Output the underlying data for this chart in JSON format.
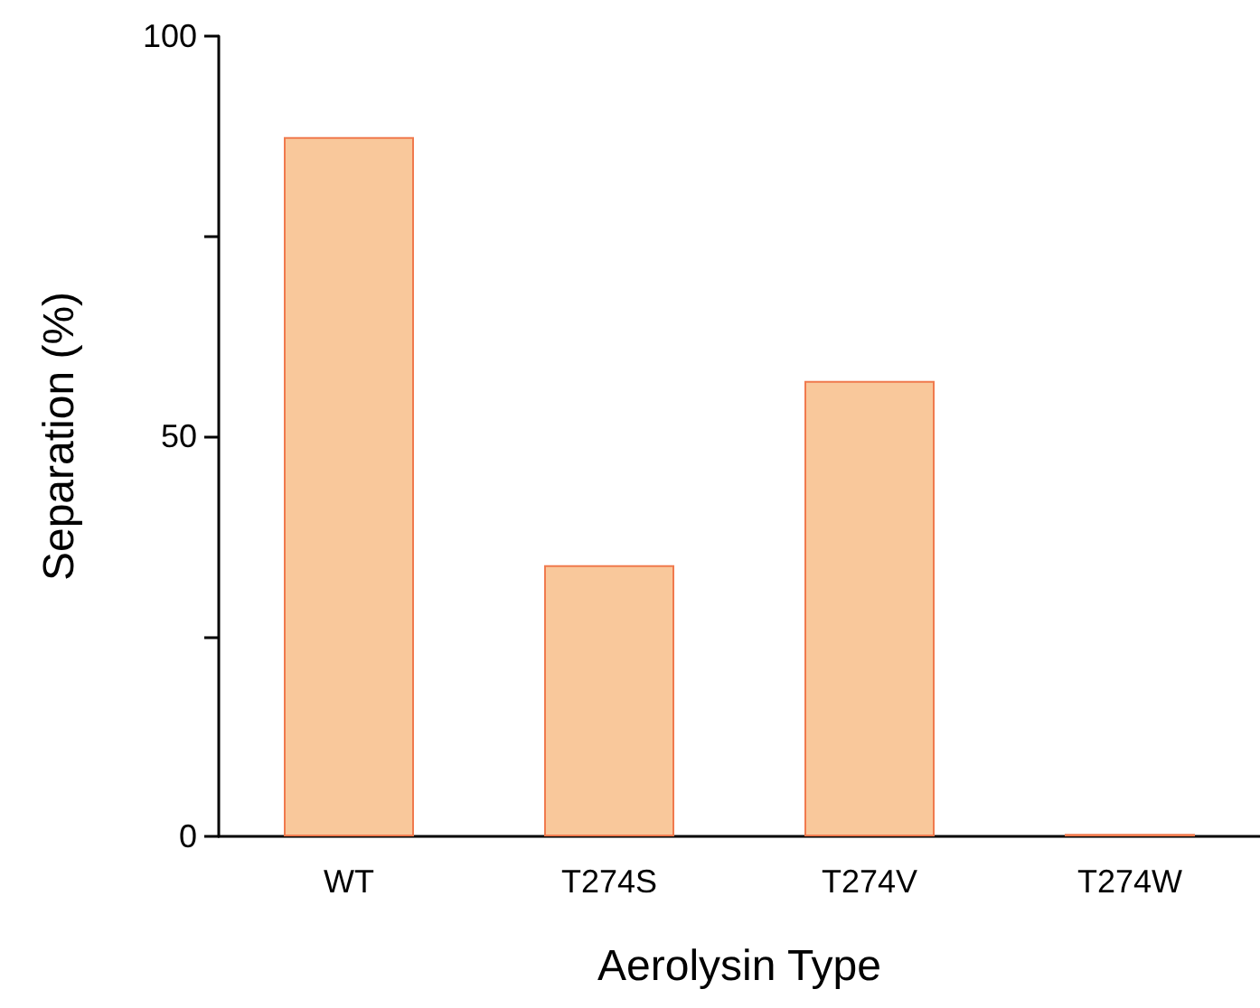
{
  "chart_data": {
    "type": "bar",
    "xlabel": "Aerolysin Type",
    "ylabel": "Separation (%)",
    "categories": [
      "WT",
      "T274S",
      "T274V",
      "T274W"
    ],
    "values": [
      87.4,
      33.9,
      56.9,
      0.3
    ],
    "color": "#f9c89b",
    "ylim": [
      0,
      100
    ],
    "yticks": [
      0,
      {
        "value": 25,
        "label": null
      },
      50,
      {
        "value": 75,
        "label": null
      },
      100
    ],
    "grid": false
  }
}
